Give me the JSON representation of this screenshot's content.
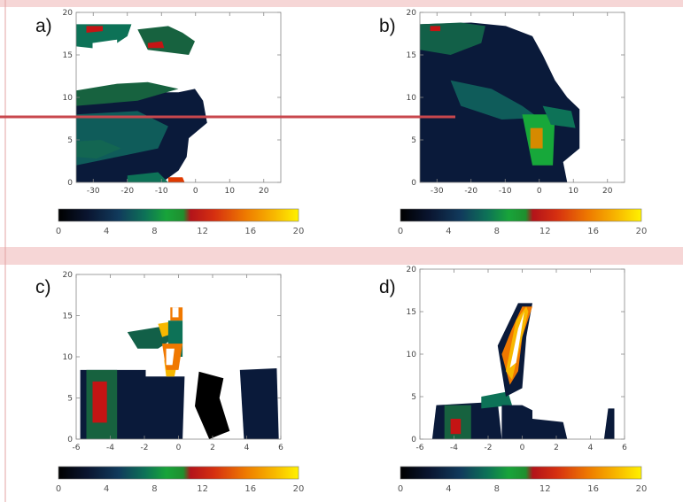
{
  "colors": {
    "colormap": [
      "#000000",
      "#0b1a3a",
      "#12405e",
      "#0f7a5a",
      "#17a83a",
      "#c41414",
      "#e03a00",
      "#f07800",
      "#f7b800",
      "#ffffff"
    ],
    "decoration_band": "#f6d6d6",
    "decoration_line": "#c8474d"
  },
  "chart_data": [
    {
      "panel": "a)",
      "type": "heatmap",
      "xlim": [
        -35,
        25
      ],
      "ylim": [
        0,
        20
      ],
      "x_ticks": [
        "-30",
        "-20",
        "-10",
        "0",
        "10",
        "20"
      ],
      "y_ticks": [
        "0",
        "5",
        "10",
        "15",
        "20"
      ],
      "colorbar": {
        "range": [
          0,
          20
        ],
        "ticks": [
          "0",
          "4",
          "8",
          "12",
          "16",
          "20"
        ]
      }
    },
    {
      "panel": "b)",
      "type": "heatmap",
      "xlim": [
        -35,
        25
      ],
      "ylim": [
        0,
        20
      ],
      "x_ticks": [
        "-30",
        "-20",
        "-10",
        "0",
        "10",
        "20"
      ],
      "y_ticks": [
        "0",
        "5",
        "10",
        "15",
        "20"
      ],
      "colorbar": {
        "range": [
          0,
          20
        ],
        "ticks": [
          "0",
          "4",
          "8",
          "12",
          "16",
          "20"
        ]
      }
    },
    {
      "panel": "c)",
      "type": "heatmap",
      "xlim": [
        -6,
        6
      ],
      "ylim": [
        0,
        20
      ],
      "x_ticks": [
        "-6",
        "-4",
        "-2",
        "0",
        "2",
        "4",
        "6"
      ],
      "y_ticks": [
        "0",
        "5",
        "10",
        "15",
        "20"
      ],
      "colorbar": {
        "range": [
          0,
          20
        ],
        "ticks": [
          "0",
          "4",
          "8",
          "12",
          "16",
          "20"
        ]
      }
    },
    {
      "panel": "d)",
      "type": "heatmap",
      "xlim": [
        -6,
        6
      ],
      "ylim": [
        0,
        20
      ],
      "x_ticks": [
        "-6",
        "-4",
        "-2",
        "0",
        "2",
        "4",
        "6"
      ],
      "y_ticks": [
        "0",
        "5",
        "10",
        "15",
        "20"
      ],
      "colorbar": {
        "range": [
          0,
          20
        ],
        "ticks": [
          "0",
          "4",
          "8",
          "12",
          "16",
          "20"
        ]
      }
    }
  ]
}
